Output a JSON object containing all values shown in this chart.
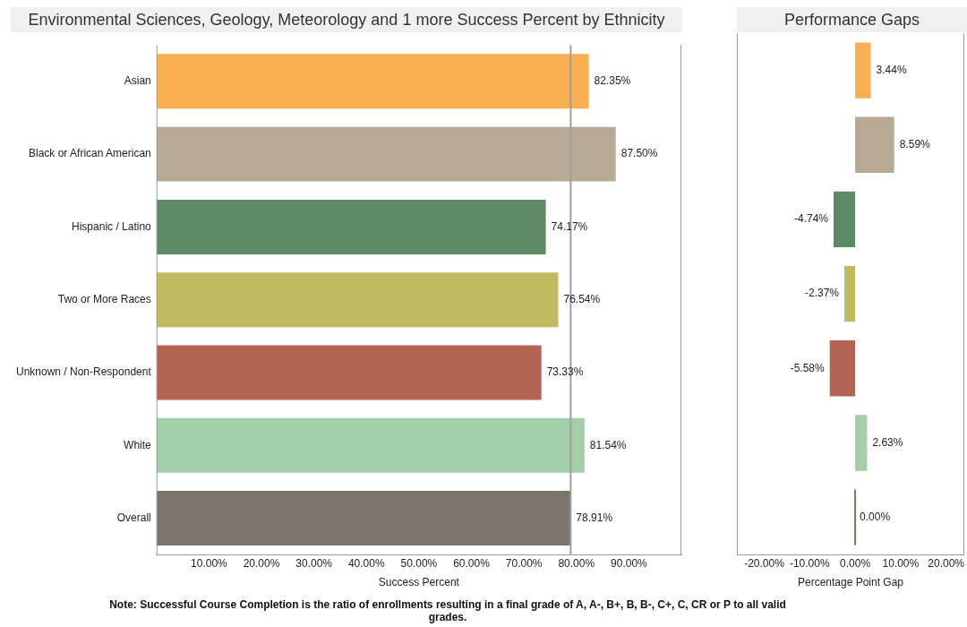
{
  "chart_data": [
    {
      "type": "bar",
      "orientation": "horizontal",
      "title": "Environmental Sciences, Geology, Meteorology and 1 more Success Percent by Ethnicity",
      "xlabel": "Success Percent",
      "categories": [
        "Asian",
        "Black or African American",
        "Hispanic / Latino",
        "Two or More Races",
        "Unknown / Non-Respondent",
        "White",
        "Overall"
      ],
      "values": [
        82.35,
        87.5,
        74.17,
        76.54,
        73.33,
        81.54,
        78.91
      ],
      "colors": [
        "#f9ae4f",
        "#b8a994",
        "#5e8a63",
        "#c0bb61",
        "#b36452",
        "#a2cfa7",
        "#7c7369"
      ],
      "value_labels": [
        "82.35%",
        "87.50%",
        "74.17%",
        "76.54%",
        "73.33%",
        "81.54%",
        "78.91%"
      ],
      "xlim": [
        0,
        100
      ],
      "xticks": [
        {
          "value": 10,
          "label": "10.00%"
        },
        {
          "value": 20,
          "label": "20.00%"
        },
        {
          "value": 30,
          "label": "30.00%"
        },
        {
          "value": 40,
          "label": "40.00%"
        },
        {
          "value": 50,
          "label": "50.00%"
        },
        {
          "value": 60,
          "label": "60.00%"
        },
        {
          "value": 70,
          "label": "70.00%"
        },
        {
          "value": 80,
          "label": "80.00%"
        },
        {
          "value": 90,
          "label": "90.00%"
        }
      ],
      "ref_lines": [
        {
          "axis": "x",
          "value": 78.91,
          "color": "#a0a0a0"
        }
      ],
      "grid": false,
      "legend": false,
      "annotations": [
        "Note: Successful Course Completion is the ratio of enrollments resulting in a final grade of A, A-, B+, B, B-, C+, C, CR or P to all valid grades."
      ]
    },
    {
      "type": "bar",
      "orientation": "horizontal",
      "title": "Performance Gaps",
      "xlabel": "Percentage Point Gap",
      "categories": [
        null,
        null,
        null,
        null,
        null,
        null,
        null
      ],
      "values": [
        3.44,
        8.59,
        -4.74,
        -2.37,
        -5.58,
        2.63,
        0
      ],
      "colors": [
        "#f9ae4f",
        "#b8a994",
        "#5e8a63",
        "#c0bb61",
        "#b36452",
        "#a2cfa7",
        "#7c7369"
      ],
      "value_labels": [
        "3.44%",
        "8.59%",
        "-4.74%",
        "-2.37%",
        "-5.58%",
        "2.63%",
        "0.00%"
      ],
      "xlim": [
        -26,
        24
      ],
      "xticks": [
        {
          "value": -20,
          "label": "-20.00%"
        },
        {
          "value": -10,
          "label": "-10.00%"
        },
        {
          "value": 0,
          "label": "0.00%"
        },
        {
          "value": 10,
          "label": "10.00%"
        },
        {
          "value": 20,
          "label": "20.00%"
        }
      ],
      "tick_labels": "x",
      "grid": false,
      "legend": false
    }
  ]
}
